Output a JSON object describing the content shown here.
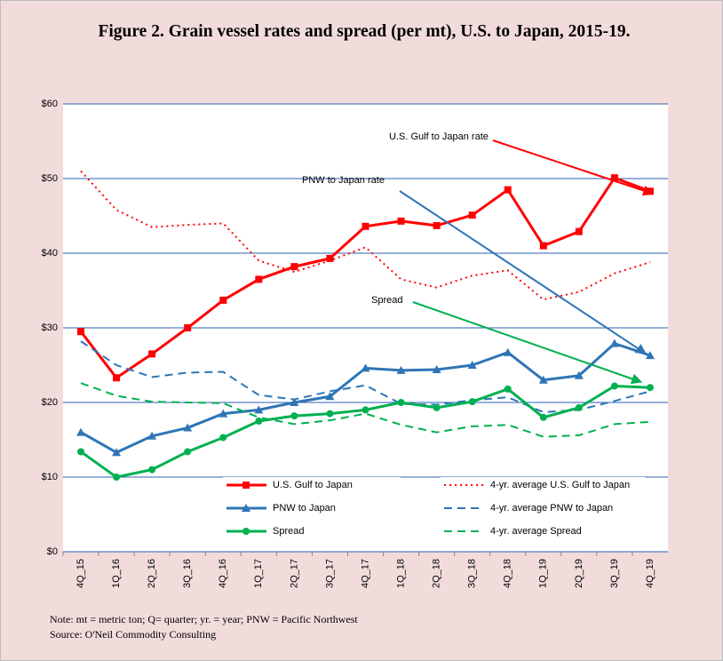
{
  "chart_data": {
    "type": "line",
    "title": "Figure 2. Grain vessel rates and spread (per mt), U.S. to Japan, 2015-19.",
    "categories": [
      "4Q_15",
      "1Q_16",
      "2Q_16",
      "3Q_16",
      "4Q_16",
      "1Q_17",
      "2Q_17",
      "3Q_17",
      "4Q_17",
      "1Q_18",
      "2Q_18",
      "3Q_18",
      "4Q_18",
      "1Q_19",
      "2Q_19",
      "3Q_19",
      "4Q_19"
    ],
    "series": [
      {
        "name": "U.S. Gulf to Japan",
        "color": "#ff0000",
        "dash": "solid",
        "marker": "square",
        "values": [
          29.5,
          23.3,
          26.5,
          30,
          33.7,
          36.5,
          38.2,
          39.3,
          43.6,
          44.3,
          43.7,
          45.1,
          48.5,
          41,
          42.9,
          50.1,
          48.3
        ]
      },
      {
        "name": "4-yr. average U.S. Gulf to Japan",
        "color": "#ff0000",
        "dash": "dotted",
        "marker": "none",
        "values": [
          51,
          45.8,
          43.5,
          43.8,
          44,
          39,
          37.5,
          39,
          40.8,
          36.5,
          35.4,
          37,
          37.7,
          33.8,
          34.8,
          37.3,
          38.8
        ]
      },
      {
        "name": "PNW to Japan",
        "color": "#2e75b6",
        "dash": "solid",
        "marker": "triangle",
        "values": [
          16,
          13.3,
          15.5,
          16.6,
          18.5,
          19,
          20,
          20.8,
          24.6,
          24.3,
          24.4,
          25,
          26.7,
          23,
          23.6,
          27.9,
          26.3
        ]
      },
      {
        "name": "4-yr. average PNW to Japan",
        "color": "#2e75b6",
        "dash": "dashed",
        "marker": "none",
        "values": [
          28.2,
          25,
          23.4,
          24,
          24.1,
          21,
          20.4,
          21.5,
          22.3,
          19.8,
          19.7,
          20.3,
          20.7,
          18.7,
          19,
          20.2,
          21.5
        ]
      },
      {
        "name": "Spread",
        "color": "#00b050",
        "dash": "solid",
        "marker": "circle",
        "values": [
          13.4,
          10,
          11,
          13.4,
          15.3,
          17.5,
          18.2,
          18.5,
          19,
          20,
          19.3,
          20.1,
          21.8,
          18,
          19.3,
          22.2,
          22
        ]
      },
      {
        "name": "4-yr. average Spread",
        "color": "#00b050",
        "dash": "dashed",
        "marker": "none",
        "values": [
          22.6,
          20.9,
          20.1,
          20,
          19.9,
          18,
          17.1,
          17.6,
          18.5,
          17,
          16,
          16.8,
          17,
          15.4,
          15.6,
          17.1,
          17.4
        ]
      }
    ],
    "ylim": [
      0,
      60
    ],
    "yticks": [
      {
        "value": 0,
        "label": "$0"
      },
      {
        "value": 10,
        "label": "$10"
      },
      {
        "value": 20,
        "label": "$20"
      },
      {
        "value": 30,
        "label": "$30"
      },
      {
        "value": 40,
        "label": "$40"
      },
      {
        "value": 50,
        "label": "$50"
      },
      {
        "value": 60,
        "label": "$60"
      }
    ],
    "grid": true,
    "grid_color": "#2e5fb6",
    "annotations": [
      {
        "text": "U.S. Gulf to Japan rate",
        "color": "#ff0000"
      },
      {
        "text": "PNW to Japan rate",
        "color": "#2e75b6"
      },
      {
        "text": "Spread",
        "color": "#00b050"
      }
    ],
    "notes": [
      "Note: mt = metric ton; Q= quarter; yr. = year; PNW = Pacific Northwest",
      "Source: O'Neil Commodity Consulting"
    ]
  }
}
